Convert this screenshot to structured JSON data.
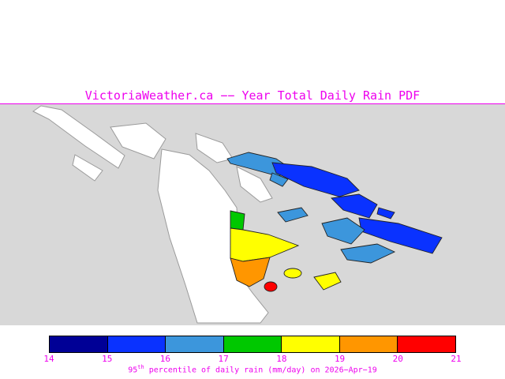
{
  "title": "VictoriaWeather.ca −− Year Total Daily Rain PDF",
  "colors": {
    "accent_magenta": "#ee00ee",
    "sea_gray": "#d8d8d8",
    "land_white": "#ffffff"
  },
  "map": {
    "sea_color": "#d8d8d8",
    "land_color": "#ffffff"
  },
  "colorbar": {
    "min": 14,
    "max": 21,
    "units": "mm/day",
    "ticks": [
      "14",
      "15",
      "16",
      "17",
      "18",
      "19",
      "20",
      "21"
    ],
    "colors": [
      "#000096",
      "#0a32ff",
      "#3c96dc",
      "#00c800",
      "#ffff00",
      "#ff9600",
      "#ff0000"
    ]
  },
  "caption": {
    "prefix": "95",
    "sup": "th",
    "rest": " percentile of daily rain (mm/day) on 2026−Apr−19"
  }
}
